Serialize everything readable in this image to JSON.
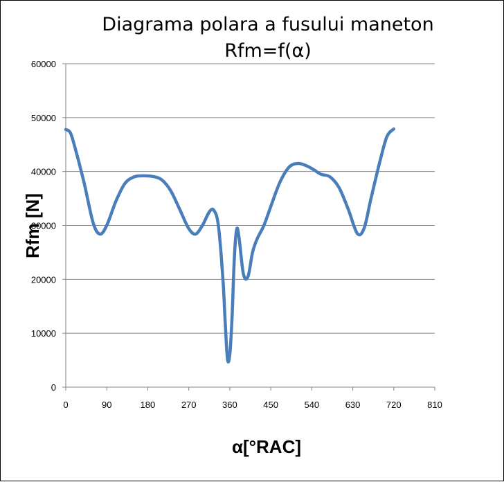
{
  "chart_data": {
    "type": "line",
    "title": "Diagrama polara a fusului maneton",
    "subtitle": "Rfm=f(α)",
    "xlabel": "α[°RAC]",
    "ylabel": "Rfm [N]",
    "xlim": [
      0,
      810
    ],
    "ylim": [
      0,
      60000
    ],
    "xticks": [
      0,
      90,
      180,
      270,
      360,
      450,
      540,
      630,
      720,
      810
    ],
    "yticks": [
      0,
      10000,
      20000,
      30000,
      40000,
      50000,
      60000
    ],
    "grid": "horizontal",
    "line_color": "#4a7ebb",
    "series": [
      {
        "name": "",
        "x": [
          0,
          10,
          20,
          40,
          60,
          75,
          90,
          110,
          130,
          150,
          170,
          190,
          210,
          230,
          250,
          270,
          285,
          300,
          315,
          325,
          335,
          345,
          350,
          355,
          360,
          365,
          370,
          375,
          380,
          390,
          400,
          410,
          420,
          435,
          450,
          470,
          490,
          510,
          530,
          545,
          560,
          580,
          600,
          620,
          640,
          655,
          670,
          690,
          705,
          720
        ],
        "y": [
          47800,
          47200,
          44500,
          38000,
          30500,
          28400,
          30000,
          34500,
          37800,
          39000,
          39200,
          39100,
          38500,
          36500,
          33000,
          29400,
          28400,
          30000,
          32500,
          32800,
          30000,
          20000,
          12000,
          5200,
          6000,
          13000,
          24000,
          29200,
          28000,
          21000,
          20500,
          25000,
          27500,
          30000,
          33500,
          38000,
          40800,
          41500,
          41000,
          40300,
          39500,
          39000,
          37000,
          33000,
          28500,
          29500,
          35000,
          42000,
          46500,
          47900
        ]
      }
    ]
  }
}
